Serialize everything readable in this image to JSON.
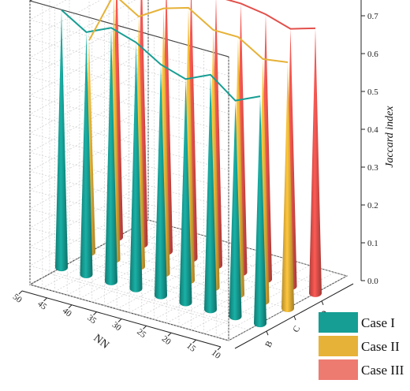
{
  "chart_data": {
    "type": "3d-cone-line",
    "x_axis": {
      "label": "NN",
      "ticks": [
        10,
        15,
        20,
        25,
        30,
        35,
        40,
        45,
        50
      ]
    },
    "y_axis": {
      "label": "",
      "ticks": [
        "B",
        "C",
        "D"
      ]
    },
    "z_axis": {
      "label": "Jaccard index",
      "ticks": [
        "0.0",
        "0.1",
        "0.2",
        "0.3",
        "0.4",
        "0.5",
        "0.6",
        "0.7"
      ],
      "range": [
        0,
        0.75
      ]
    },
    "grid": true,
    "legend_position": "bottom-right",
    "series": [
      {
        "name": "Case I",
        "color": "#169e94",
        "x": [
          50,
          45,
          40,
          35,
          30,
          25,
          20,
          15,
          10
        ],
        "values": [
          0.68,
          0.64,
          0.67,
          0.65,
          0.61,
          0.59,
          0.62,
          0.57,
          0.6
        ]
      },
      {
        "name": "Case II",
        "color": "#e6b237",
        "x": [
          50,
          45,
          40,
          35,
          30,
          25,
          20,
          15,
          10
        ],
        "values": [
          0.56,
          0.7,
          0.66,
          0.7,
          0.72,
          0.68,
          0.68,
          0.64,
          0.65
        ]
      },
      {
        "name": "Case III",
        "color": "#e2504b",
        "x": [
          50,
          45,
          40,
          35,
          30,
          25,
          20,
          15,
          10
        ],
        "values": [
          0.71,
          0.74,
          0.72,
          0.73,
          0.71,
          0.71,
          0.7,
          0.68,
          0.7
        ]
      }
    ]
  },
  "legend_colors": [
    "#169e94",
    "#e6b237",
    "#ee7b70"
  ]
}
